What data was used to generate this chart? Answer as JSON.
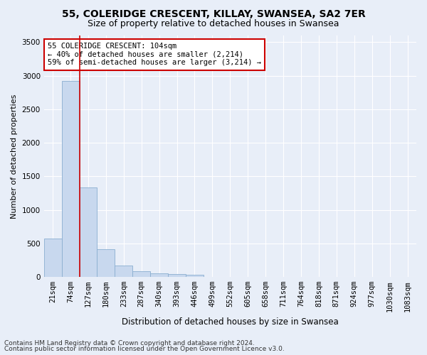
{
  "title1": "55, COLERIDGE CRESCENT, KILLAY, SWANSEA, SA2 7ER",
  "title2": "Size of property relative to detached houses in Swansea",
  "xlabel": "Distribution of detached houses by size in Swansea",
  "ylabel": "Number of detached properties",
  "categories": [
    "21sqm",
    "74sqm",
    "127sqm",
    "180sqm",
    "233sqm",
    "287sqm",
    "340sqm",
    "393sqm",
    "446sqm",
    "499sqm",
    "552sqm",
    "605sqm",
    "658sqm",
    "711sqm",
    "764sqm",
    "818sqm",
    "871sqm",
    "924sqm",
    "977sqm",
    "1030sqm",
    "1083sqm"
  ],
  "values": [
    570,
    2920,
    1330,
    415,
    170,
    80,
    55,
    45,
    35,
    0,
    0,
    0,
    0,
    0,
    0,
    0,
    0,
    0,
    0,
    0,
    0
  ],
  "bar_color": "#c8d8ee",
  "bar_edge_color": "#8aaed0",
  "bg_color": "#e8eef8",
  "grid_color": "#ffffff",
  "vline_x_index": 1,
  "vline_color": "#cc0000",
  "annotation_text": "55 COLERIDGE CRESCENT: 104sqm\n← 40% of detached houses are smaller (2,214)\n59% of semi-detached houses are larger (3,214) →",
  "annotation_box_color": "#ffffff",
  "annotation_box_edge_color": "#cc0000",
  "ylim": [
    0,
    3600
  ],
  "yticks": [
    0,
    500,
    1000,
    1500,
    2000,
    2500,
    3000,
    3500
  ],
  "footer1": "Contains HM Land Registry data © Crown copyright and database right 2024.",
  "footer2": "Contains public sector information licensed under the Open Government Licence v3.0.",
  "title1_fontsize": 10,
  "title2_fontsize": 9,
  "xlabel_fontsize": 8.5,
  "ylabel_fontsize": 8,
  "tick_fontsize": 7.5,
  "annotation_fontsize": 7.5,
  "footer_fontsize": 6.5
}
